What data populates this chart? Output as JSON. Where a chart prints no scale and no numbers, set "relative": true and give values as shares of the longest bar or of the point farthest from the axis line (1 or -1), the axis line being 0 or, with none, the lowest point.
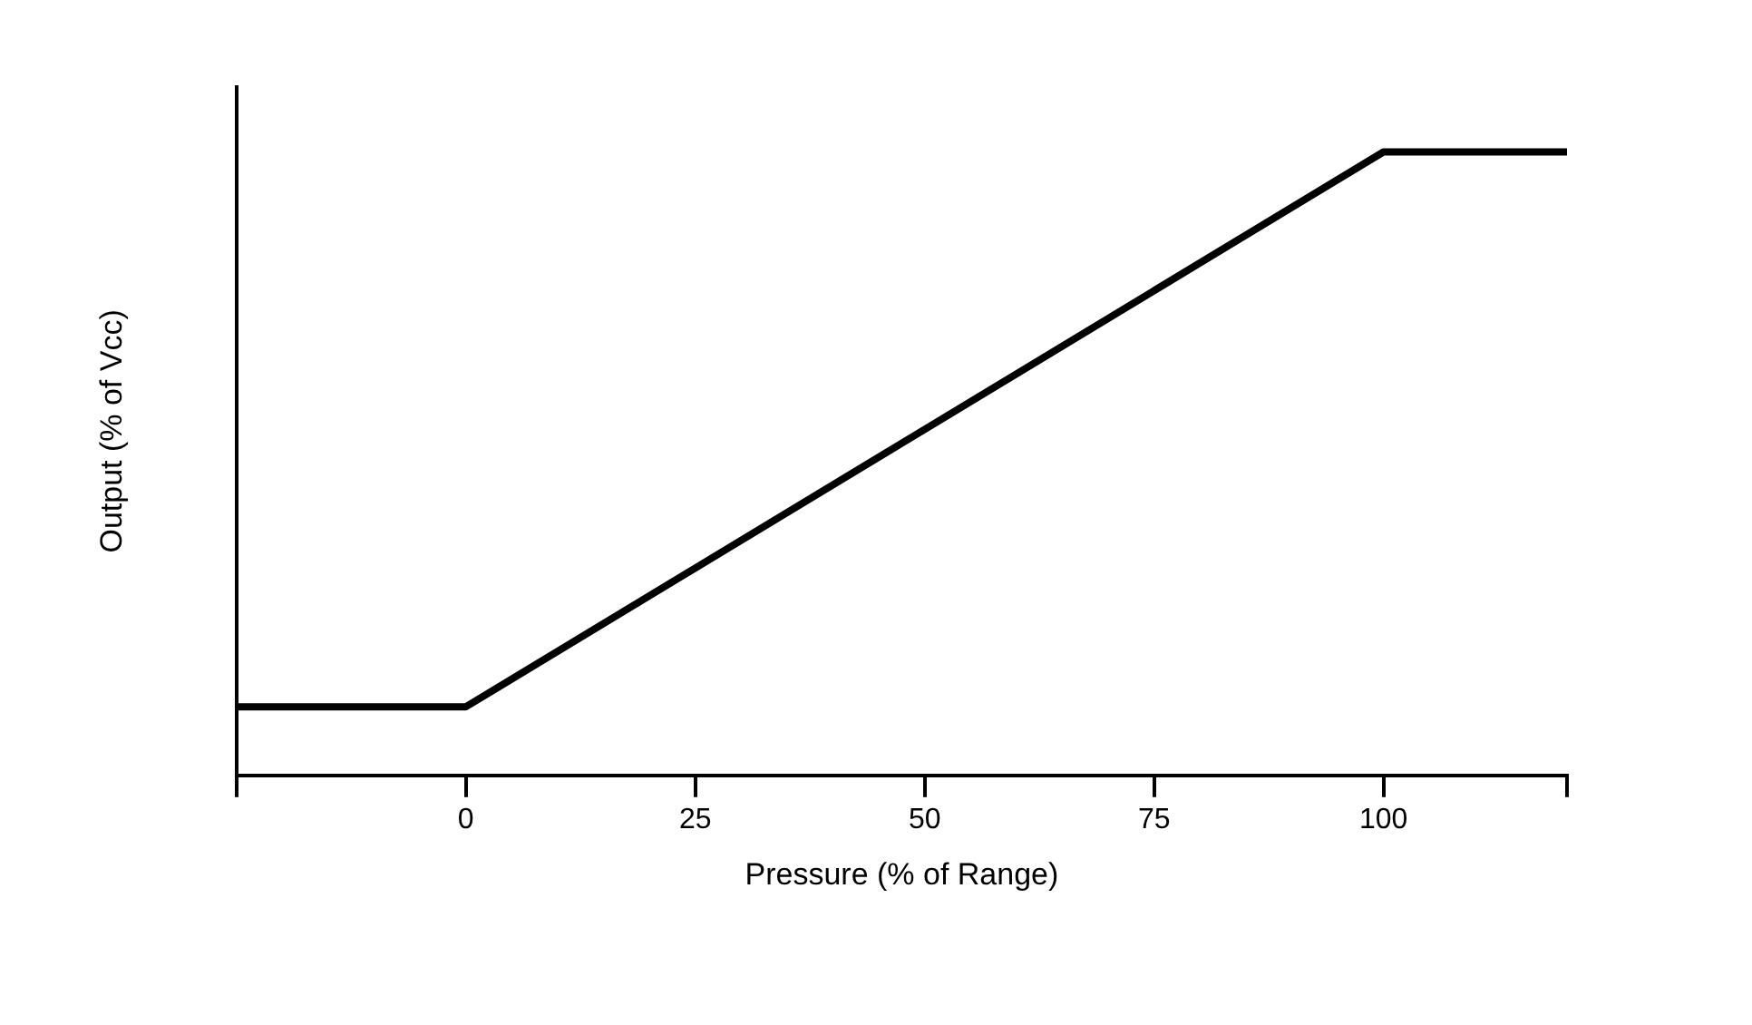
{
  "chart_data": {
    "type": "line",
    "xlabel": "Pressure (% of Range)",
    "ylabel": "Output (% of Vcc)",
    "relative": true,
    "x": [
      -25,
      0,
      100,
      120
    ],
    "series": [
      {
        "color": "#000000",
        "values": [
          0.11,
          0.11,
          1,
          1
        ]
      }
    ],
    "xlim": [
      -25,
      120
    ],
    "xticks": [
      {
        "value": -25,
        "label": null
      },
      0,
      25,
      50,
      75,
      100,
      {
        "value": 120,
        "label": null
      }
    ],
    "grid": false,
    "legend": false,
    "marker": "none",
    "line_style": "solid"
  }
}
